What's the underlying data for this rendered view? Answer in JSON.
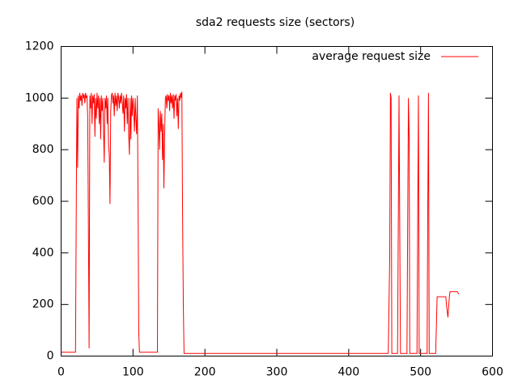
{
  "chart_data": {
    "type": "line",
    "title": "sda2 requests size (sectors)",
    "x": [
      0,
      1,
      20,
      21,
      22,
      23,
      24,
      25,
      26,
      27,
      28,
      29,
      30,
      31,
      32,
      33,
      34,
      35,
      36,
      37,
      38,
      39,
      40,
      41,
      42,
      43,
      44,
      45,
      46,
      47,
      48,
      49,
      50,
      51,
      52,
      53,
      54,
      55,
      56,
      57,
      58,
      59,
      60,
      61,
      62,
      63,
      64,
      65,
      66,
      67,
      68,
      69,
      70,
      71,
      72,
      73,
      74,
      75,
      76,
      77,
      78,
      79,
      80,
      81,
      82,
      83,
      84,
      85,
      86,
      87,
      88,
      89,
      90,
      91,
      92,
      93,
      94,
      95,
      96,
      97,
      98,
      99,
      100,
      101,
      102,
      103,
      104,
      105,
      106,
      107,
      108,
      109,
      134,
      135,
      136,
      137,
      138,
      139,
      140,
      141,
      142,
      143,
      144,
      145,
      146,
      147,
      148,
      149,
      150,
      151,
      152,
      153,
      154,
      155,
      156,
      157,
      158,
      159,
      160,
      161,
      162,
      163,
      164,
      165,
      166,
      167,
      168,
      169,
      170,
      171,
      455,
      457,
      458,
      459,
      460,
      468,
      470,
      471,
      472,
      481,
      483,
      484,
      485,
      495,
      496,
      497,
      498,
      509,
      510,
      511,
      512,
      521,
      523,
      535,
      536,
      538,
      540,
      541,
      551,
      553
    ],
    "series": [
      {
        "name": "average request size",
        "color": "#ff0000",
        "values": [
          20,
          15,
          15,
          560,
          1000,
          730,
          1010,
          960,
          1020,
          990,
          1010,
          970,
          1020,
          1000,
          1015,
          980,
          1020,
          1000,
          1010,
          920,
          460,
          30,
          1010,
          960,
          1020,
          900,
          1010,
          980,
          1015,
          850,
          1000,
          920,
          1020,
          960,
          1010,
          900,
          1000,
          840,
          1010,
          950,
          1000,
          880,
          750,
          1000,
          960,
          1010,
          900,
          1000,
          820,
          780,
          590,
          950,
          1010,
          1020,
          980,
          1010,
          930,
          1020,
          970,
          1010,
          950,
          1020,
          1000,
          960,
          1010,
          980,
          1020,
          990,
          940,
          1010,
          870,
          1000,
          960,
          1015,
          900,
          1000,
          860,
          780,
          1000,
          840,
          1010,
          930,
          1000,
          950,
          870,
          1000,
          920,
          860,
          1010,
          600,
          100,
          15,
          15,
          960,
          900,
          800,
          950,
          870,
          940,
          760,
          900,
          650,
          850,
          1000,
          1010,
          960,
          1015,
          990,
          1010,
          950,
          1020,
          980,
          1010,
          960,
          1015,
          920,
          1010,
          990,
          1015,
          930,
          1000,
          880,
          1010,
          990,
          1020,
          1000,
          1025,
          540,
          200,
          10,
          10,
          380,
          1020,
          1000,
          10,
          10,
          1010,
          500,
          10,
          10,
          1000,
          850,
          10,
          10,
          550,
          1010,
          10,
          10,
          560,
          1020,
          10,
          10,
          230,
          230,
          200,
          150,
          230,
          250,
          250,
          240
        ]
      }
    ],
    "xlim": [
      0,
      600
    ],
    "xticks": [
      0,
      100,
      200,
      300,
      400,
      500,
      600
    ],
    "ylim": [
      0,
      1200
    ],
    "yticks": [
      0,
      200,
      400,
      600,
      800,
      1000,
      1200
    ],
    "legend": "top-right"
  }
}
